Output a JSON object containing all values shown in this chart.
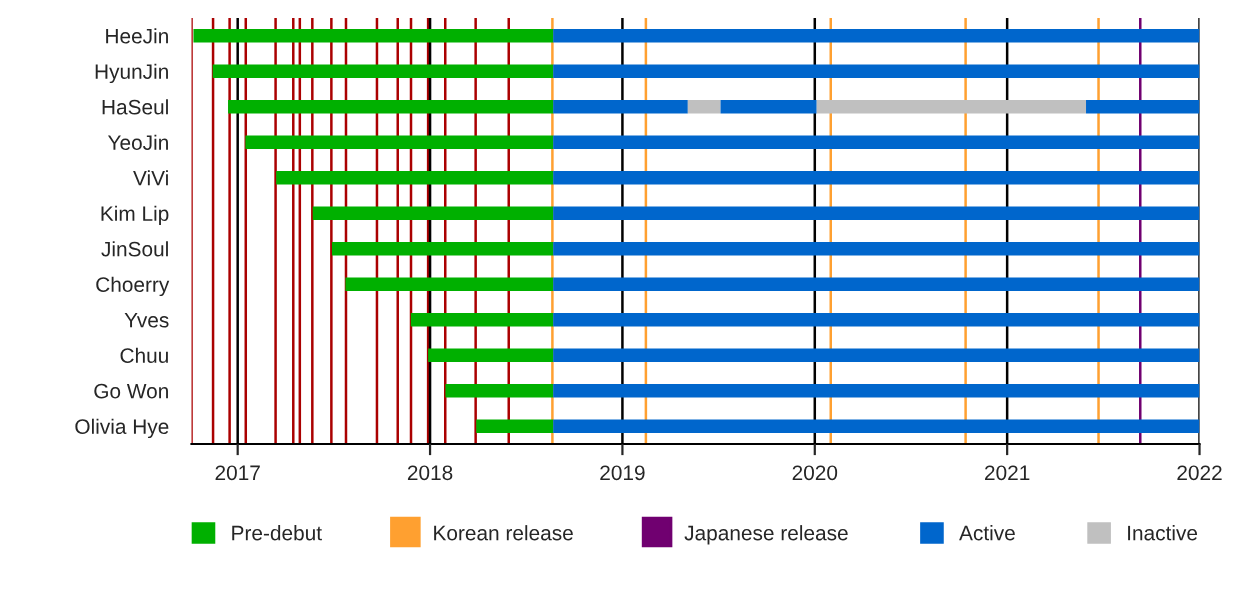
{
  "chart_data": {
    "type": "bar",
    "orientation": "horizontal",
    "categories": [
      "HeeJin",
      "HyunJin",
      "HaSeul",
      "YeoJin",
      "ViVi",
      "Kim Lip",
      "JinSoul",
      "Choerry",
      "Yves",
      "Chuu",
      "Go Won",
      "Olivia Hye"
    ],
    "series": [
      {
        "name": "Pre-debut",
        "color": "#00b000",
        "base": [
          2016.77,
          2016.87,
          2016.95,
          2017.04,
          2017.2,
          2017.39,
          2017.49,
          2017.56,
          2017.9,
          2017.99,
          2018.08,
          2018.24
        ],
        "values": [
          1.87,
          1.77,
          1.69,
          1.6,
          1.44,
          1.25,
          1.15,
          1.08,
          0.74,
          0.65,
          0.56,
          0.4
        ]
      },
      {
        "name": "Active",
        "color": "#0066cc",
        "base": [
          2018.64,
          2018.64,
          2018.64,
          2018.64,
          2018.64,
          2018.64,
          2018.64,
          2018.64,
          2018.64,
          2018.64,
          2018.64,
          2018.64
        ],
        "values": [
          3.36,
          3.36,
          0.7,
          3.36,
          3.36,
          3.36,
          3.36,
          3.36,
          3.36,
          3.36,
          3.36,
          3.36
        ]
      },
      {
        "name": "Inactive",
        "color": "#c0c0c0",
        "base": [
          null,
          null,
          2019.34,
          null,
          null,
          null,
          null,
          null,
          null,
          null,
          null,
          null
        ],
        "values": [
          null,
          null,
          0.17,
          null,
          null,
          null,
          null,
          null,
          null,
          null,
          null,
          null
        ]
      },
      {
        "color": "#0066cc",
        "base": [
          null,
          null,
          2019.51,
          null,
          null,
          null,
          null,
          null,
          null,
          null,
          null,
          null
        ],
        "values": [
          null,
          null,
          0.5,
          null,
          null,
          null,
          null,
          null,
          null,
          null,
          null,
          null
        ]
      },
      {
        "color": "#c0c0c0",
        "base": [
          null,
          null,
          2020.01,
          null,
          null,
          null,
          null,
          null,
          null,
          null,
          null,
          null
        ],
        "values": [
          null,
          null,
          1.4,
          null,
          null,
          null,
          null,
          null,
          null,
          null,
          null,
          null
        ]
      },
      {
        "color": "#0066cc",
        "base": [
          null,
          null,
          2021.41,
          null,
          null,
          null,
          null,
          null,
          null,
          null,
          null,
          null
        ],
        "values": [
          null,
          null,
          0.59,
          null,
          null,
          null,
          null,
          null,
          null,
          null,
          null,
          null
        ]
      }
    ],
    "xlim": [
      2016.76,
      2022
    ],
    "xticks": [
      2017,
      2018,
      2019,
      2020,
      2021,
      2022
    ],
    "grid": "x",
    "legend": "bottom",
    "ref_lines": [
      {
        "axis": "x",
        "value": 2016.76,
        "color": "#aa0000"
      },
      {
        "axis": "x",
        "value": 2016.872,
        "color": "#aa0000"
      },
      {
        "axis": "x",
        "value": 2016.958,
        "color": "#aa0000"
      },
      {
        "axis": "x",
        "value": 2017.042,
        "color": "#aa0000"
      },
      {
        "axis": "x",
        "value": 2017.197,
        "color": "#aa0000"
      },
      {
        "axis": "x",
        "value": 2017.289,
        "color": "#aa0000"
      },
      {
        "axis": "x",
        "value": 2017.323,
        "color": "#aa0000"
      },
      {
        "axis": "x",
        "value": 2017.388,
        "color": "#aa0000"
      },
      {
        "axis": "x",
        "value": 2017.487,
        "color": "#aa0000"
      },
      {
        "axis": "x",
        "value": 2017.563,
        "color": "#aa0000"
      },
      {
        "axis": "x",
        "value": 2017.724,
        "color": "#aa0000"
      },
      {
        "axis": "x",
        "value": 2017.832,
        "color": "#aa0000"
      },
      {
        "axis": "x",
        "value": 2017.901,
        "color": "#aa0000"
      },
      {
        "axis": "x",
        "value": 2017.99,
        "color": "#aa0000"
      },
      {
        "axis": "x",
        "value": 2018.079,
        "color": "#aa0000"
      },
      {
        "axis": "x",
        "value": 2018.237,
        "color": "#aa0000"
      },
      {
        "axis": "x",
        "value": 2018.409,
        "color": "#aa0000"
      },
      {
        "axis": "x",
        "value": 2018.636,
        "color": "#ffa030",
        "label": "Korean release"
      },
      {
        "axis": "x",
        "value": 2019.122,
        "color": "#ffa030"
      },
      {
        "axis": "x",
        "value": 2020.083,
        "color": "#ffa030"
      },
      {
        "axis": "x",
        "value": 2020.784,
        "color": "#ffa030"
      },
      {
        "axis": "x",
        "value": 2021.475,
        "color": "#ffa030"
      },
      {
        "axis": "x",
        "value": 2021.692,
        "color": "#700070",
        "label": "Japanese release"
      }
    ]
  }
}
